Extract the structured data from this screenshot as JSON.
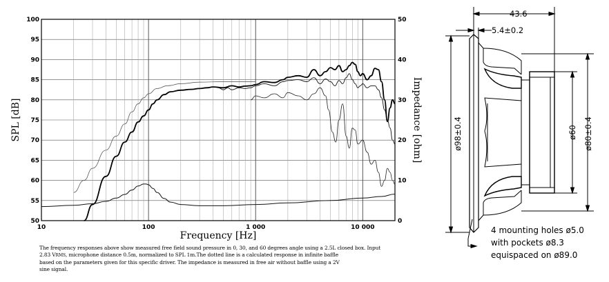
{
  "chart_data": {
    "type": "line",
    "xlabel": "Frequency [Hz]",
    "ylabel": "SPL [dB]",
    "y2label": "Impedance [ohm]",
    "xscale": "log",
    "xlim": [
      10,
      20000
    ],
    "ylim": [
      50,
      100
    ],
    "y2lim": [
      0,
      50
    ],
    "grid": true,
    "x_ticks": [
      "10",
      "100",
      "1 000",
      "10 000"
    ],
    "y_ticks": [
      "50",
      "55",
      "60",
      "65",
      "70",
      "75",
      "80",
      "85",
      "90",
      "95",
      "100"
    ],
    "y2_ticks": [
      "0",
      "10",
      "20",
      "30",
      "40",
      "50"
    ],
    "series": [
      {
        "id": "spl_0deg",
        "axis": "left",
        "x": [
          25,
          30,
          40,
          50,
          60,
          70,
          80,
          90,
          100,
          110,
          120,
          140,
          160,
          200,
          250,
          300,
          350,
          400,
          500,
          600,
          700,
          800,
          900,
          1000,
          1200,
          1500,
          1800,
          2000,
          2500,
          3000,
          3500,
          4000,
          4500,
          5000,
          5500,
          6000,
          6500,
          7000,
          7500,
          8000,
          8500,
          9000,
          9500,
          10000,
          11000,
          12000,
          13000,
          14000,
          15000,
          16000,
          17000,
          18000,
          19000,
          20000
        ],
        "y": [
          50,
          54,
          61,
          66,
          69.5,
          72,
          74.5,
          76,
          77.5,
          79,
          80,
          81.3,
          82,
          82.4,
          82.6,
          82.8,
          83,
          83.2,
          83,
          83.5,
          83.2,
          83.4,
          83.5,
          83.8,
          84.5,
          84.3,
          85,
          85.6,
          86,
          85.6,
          87.5,
          86,
          87,
          88,
          87.5,
          88.5,
          87,
          87.5,
          88.5,
          89.3,
          88.8,
          87,
          86,
          86.5,
          85,
          86,
          87.8,
          87.5,
          84.5,
          80,
          74.6,
          78,
          80,
          79
        ]
      },
      {
        "id": "spl_30deg",
        "axis": "left",
        "x": [
          450,
          500,
          550,
          600,
          700,
          800,
          900,
          1000,
          1200,
          1500,
          1800,
          2000,
          2500,
          3000,
          3500,
          4000,
          4500,
          5000,
          5500,
          6000,
          6500,
          7000,
          7500,
          8000,
          8500,
          9000,
          9500,
          10000,
          11000,
          12000,
          13000,
          14000,
          15000,
          16000,
          17000,
          18000,
          19000,
          20000
        ],
        "y": [
          83,
          82.5,
          83,
          82.5,
          83,
          82.8,
          83,
          83.5,
          84,
          83.5,
          84.5,
          84.8,
          85,
          84.5,
          85.5,
          84,
          85.2,
          84.5,
          83.5,
          84.8,
          84,
          85.5,
          86.5,
          85,
          84,
          83,
          83.5,
          84,
          83,
          83.5,
          83.5,
          82.5,
          80.5,
          77.5,
          75,
          73,
          70,
          69
        ]
      },
      {
        "id": "spl_60deg",
        "axis": "left",
        "x": [
          900,
          1000,
          1200,
          1500,
          1800,
          2000,
          2500,
          3000,
          3500,
          4000,
          4500,
          4800,
          5200,
          5600,
          6000,
          6500,
          7000,
          7500,
          8000,
          8500,
          9000,
          10000,
          11000,
          12000,
          13000,
          14000,
          15000,
          16000,
          17000,
          18000,
          19000,
          20000
        ],
        "y": [
          80,
          81,
          80.5,
          81.5,
          80.5,
          81.8,
          81,
          80,
          81.5,
          83,
          81,
          77.5,
          72,
          69.5,
          75,
          79,
          71,
          68,
          73,
          72.5,
          69,
          70,
          67,
          64,
          65,
          62,
          58.5,
          60,
          63,
          62,
          60,
          59
        ]
      },
      {
        "id": "spl_infinite_baffle",
        "axis": "left",
        "style": "thin",
        "x": [
          20,
          25,
          30,
          40,
          50,
          60,
          70,
          80,
          90,
          100,
          120,
          150,
          200,
          300,
          500,
          1000
        ],
        "y": [
          57,
          60,
          63,
          67.5,
          71,
          74,
          77,
          79,
          80.5,
          81.5,
          82.8,
          83.5,
          84,
          84.4,
          84.5,
          84.5
        ]
      },
      {
        "id": "impedance",
        "axis": "right",
        "x": [
          10,
          20,
          30,
          40,
          50,
          60,
          70,
          80,
          90,
          95,
          100,
          110,
          120,
          140,
          160,
          200,
          300,
          500,
          1000,
          2000,
          5000,
          10000,
          15000,
          20000
        ],
        "y": [
          3.5,
          3.8,
          4.2,
          4.8,
          5.6,
          6.5,
          7.6,
          8.6,
          9.1,
          9.1,
          8.9,
          8.0,
          7.0,
          5.5,
          4.6,
          4.0,
          3.7,
          3.7,
          4.0,
          4.4,
          5.0,
          5.6,
          6.0,
          6.6
        ]
      }
    ]
  },
  "caption": {
    "line1": "The frequency responses above show measured free field sound pressure in 0, 30, and 60 degrees angle using a 2.5L closed box. Input",
    "line2a": "2.83 V",
    "line2_sub": "RMS",
    "line2b": ", microphone distance 0.5m, normalized to SPL 1m.The dotted line is a calculated response in infinite baffle",
    "line3": "based on the parameters given for this specific driver. The impedance is measured in free air without baffle using a 2V",
    "line4": "sine signal."
  },
  "drawing": {
    "dim_depth": "43.6",
    "dim_flange": "5.4±0.2",
    "dim_outer_diameter": "ø98±0.4",
    "dim_magnet": "ø60",
    "dim_mount": "ø80±0.4",
    "mount_note": [
      "4 mounting holes ø5.0",
      "with pockets ø8.3",
      "equispaced on ø89.0"
    ]
  }
}
